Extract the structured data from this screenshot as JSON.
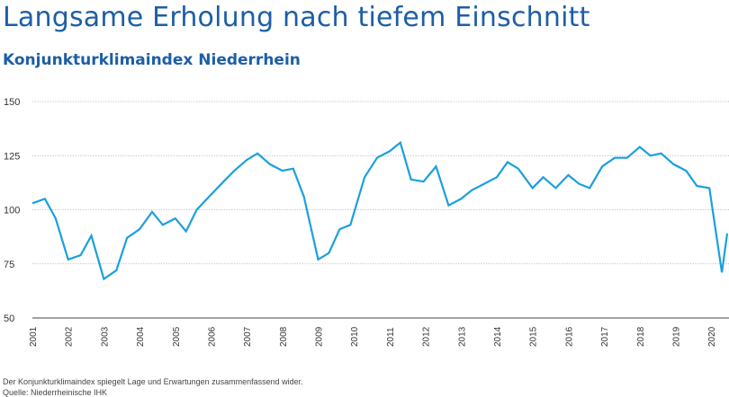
{
  "chart_data": {
    "type": "line",
    "title": "Langsame Erholung nach tiefem Einschnitt",
    "subtitle": "Konjunkturklimaindex Niederrhein",
    "xlabel": "",
    "ylabel": "",
    "ylim": [
      50,
      150
    ],
    "yticks": [
      "50",
      "75",
      "100",
      "125",
      "150"
    ],
    "xlim": [
      2001.0,
      2020.5
    ],
    "xtick_labels": [
      "2001",
      "2002",
      "2003",
      "2004",
      "2005",
      "2006",
      "2007",
      "2008",
      "2009",
      "2010",
      "2011",
      "2012",
      "2013",
      "2014",
      "2015",
      "2016",
      "2017",
      "2018",
      "2019",
      "2020"
    ],
    "grid": true,
    "line_color": "#1aa0dc",
    "series": [
      {
        "x": [
          2001.0,
          2001.35,
          2001.65,
          2002.0,
          2002.35,
          2002.65,
          2003.0,
          2003.35,
          2003.65,
          2004.0,
          2004.35,
          2004.65,
          2005.0,
          2005.3,
          2005.6,
          2006.0,
          2006.35,
          2006.65,
          2007.0,
          2007.3,
          2007.65,
          2008.0,
          2008.3,
          2008.6,
          2009.0,
          2009.3,
          2009.6,
          2009.9,
          2010.3,
          2010.65,
          2011.0,
          2011.3,
          2011.6,
          2011.95,
          2012.3,
          2012.65,
          2013.0,
          2013.3,
          2013.65,
          2014.0,
          2014.3,
          2014.6,
          2015.0,
          2015.3,
          2015.65,
          2016.0,
          2016.3,
          2016.6,
          2016.95,
          2017.3,
          2017.65,
          2018.0,
          2018.3,
          2018.6,
          2018.95,
          2019.3,
          2019.6,
          2019.95,
          2020.3,
          2020.45
        ],
        "values": [
          103,
          105,
          96,
          77,
          79,
          88,
          68,
          72,
          87,
          91,
          99,
          93,
          96,
          90,
          100,
          107,
          113,
          118,
          123,
          126,
          121,
          118,
          119,
          106,
          77,
          80,
          91,
          93,
          115,
          124,
          127,
          131,
          114,
          113,
          120,
          102,
          105,
          109,
          112,
          115,
          122,
          119,
          110,
          115,
          110,
          116,
          112,
          110,
          120,
          124,
          124,
          129,
          125,
          126,
          121,
          118,
          111,
          110,
          71,
          89
        ]
      }
    ]
  },
  "footer": {
    "note": "Der Konjunkturklimaindex spiegelt Lage und Erwartungen zusammenfassend wider.",
    "source": "Quelle: Niederrheinische IHK"
  }
}
